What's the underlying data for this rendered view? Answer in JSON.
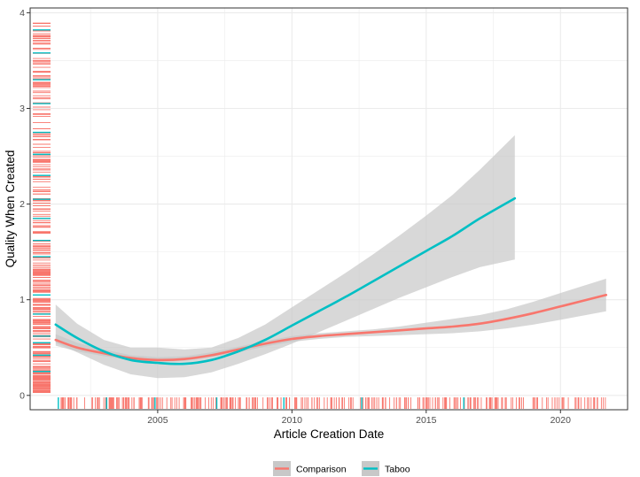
{
  "chart_data": {
    "type": "line",
    "xlabel": "Article Creation Date",
    "ylabel": "Quality When Created",
    "xlim": [
      2000.25,
      2022.5
    ],
    "ylim": [
      -0.15,
      4.05
    ],
    "x_ticks": [
      2005,
      2010,
      2015,
      2020
    ],
    "x_tick_labels": [
      "2005",
      "2010",
      "2015",
      "2020"
    ],
    "y_ticks": [
      0,
      1,
      2,
      3,
      4
    ],
    "y_tick_labels": [
      "0",
      "1",
      "2",
      "3",
      "4"
    ],
    "grid": true,
    "legend_position": "bottom",
    "series": [
      {
        "name": "Comparison",
        "color": "#F8766D",
        "x": [
          2001.2,
          2002,
          2003,
          2004,
          2005,
          2006,
          2007,
          2008,
          2009,
          2010,
          2011,
          2012,
          2013,
          2014,
          2015,
          2016,
          2017,
          2018,
          2019,
          2020,
          2021.7
        ],
        "y": [
          0.58,
          0.5,
          0.44,
          0.39,
          0.37,
          0.38,
          0.42,
          0.48,
          0.54,
          0.59,
          0.62,
          0.64,
          0.66,
          0.68,
          0.7,
          0.72,
          0.75,
          0.8,
          0.86,
          0.93,
          1.05
        ],
        "ci_low": [
          0.52,
          0.46,
          0.41,
          0.37,
          0.35,
          0.36,
          0.4,
          0.45,
          0.51,
          0.56,
          0.59,
          0.61,
          0.62,
          0.63,
          0.64,
          0.65,
          0.67,
          0.7,
          0.74,
          0.79,
          0.88
        ],
        "ci_high": [
          0.64,
          0.55,
          0.48,
          0.42,
          0.4,
          0.41,
          0.45,
          0.51,
          0.57,
          0.62,
          0.65,
          0.67,
          0.69,
          0.72,
          0.76,
          0.8,
          0.84,
          0.9,
          0.98,
          1.07,
          1.22
        ]
      },
      {
        "name": "Taboo",
        "color": "#00BFC4",
        "x": [
          2001.2,
          2002,
          2003,
          2004,
          2005,
          2006,
          2007,
          2008,
          2009,
          2010,
          2011,
          2012,
          2013,
          2014,
          2015,
          2016,
          2017,
          2018.3
        ],
        "y": [
          0.74,
          0.6,
          0.46,
          0.37,
          0.34,
          0.33,
          0.37,
          0.46,
          0.58,
          0.73,
          0.88,
          1.03,
          1.19,
          1.35,
          1.51,
          1.67,
          1.85,
          2.06
        ],
        "ci_low": [
          0.55,
          0.45,
          0.32,
          0.22,
          0.18,
          0.19,
          0.24,
          0.33,
          0.43,
          0.54,
          0.66,
          0.78,
          0.9,
          1.02,
          1.13,
          1.24,
          1.34,
          1.42
        ],
        "ci_high": [
          0.95,
          0.75,
          0.58,
          0.5,
          0.5,
          0.48,
          0.5,
          0.6,
          0.74,
          0.92,
          1.1,
          1.28,
          1.47,
          1.67,
          1.88,
          2.1,
          2.36,
          2.72
        ]
      }
    ],
    "ci_fill_color": "#c8c8c8",
    "grid_color": "#ebebeb",
    "rug": {
      "left_comparison_range": [
        0.03,
        3.95
      ],
      "left_taboo_values": [
        0.25,
        0.42,
        0.55,
        0.62,
        0.85,
        1.05,
        1.45,
        1.62,
        1.85,
        2.05,
        2.3,
        2.52,
        2.75,
        3.05,
        3.3,
        3.58,
        3.82
      ],
      "bottom_range": [
        2001.4,
        2021.7
      ],
      "bottom_taboo_values": [
        2001.3,
        2003.1,
        2004.9,
        2007.2,
        2009.7,
        2012.6,
        2016.4
      ]
    }
  }
}
